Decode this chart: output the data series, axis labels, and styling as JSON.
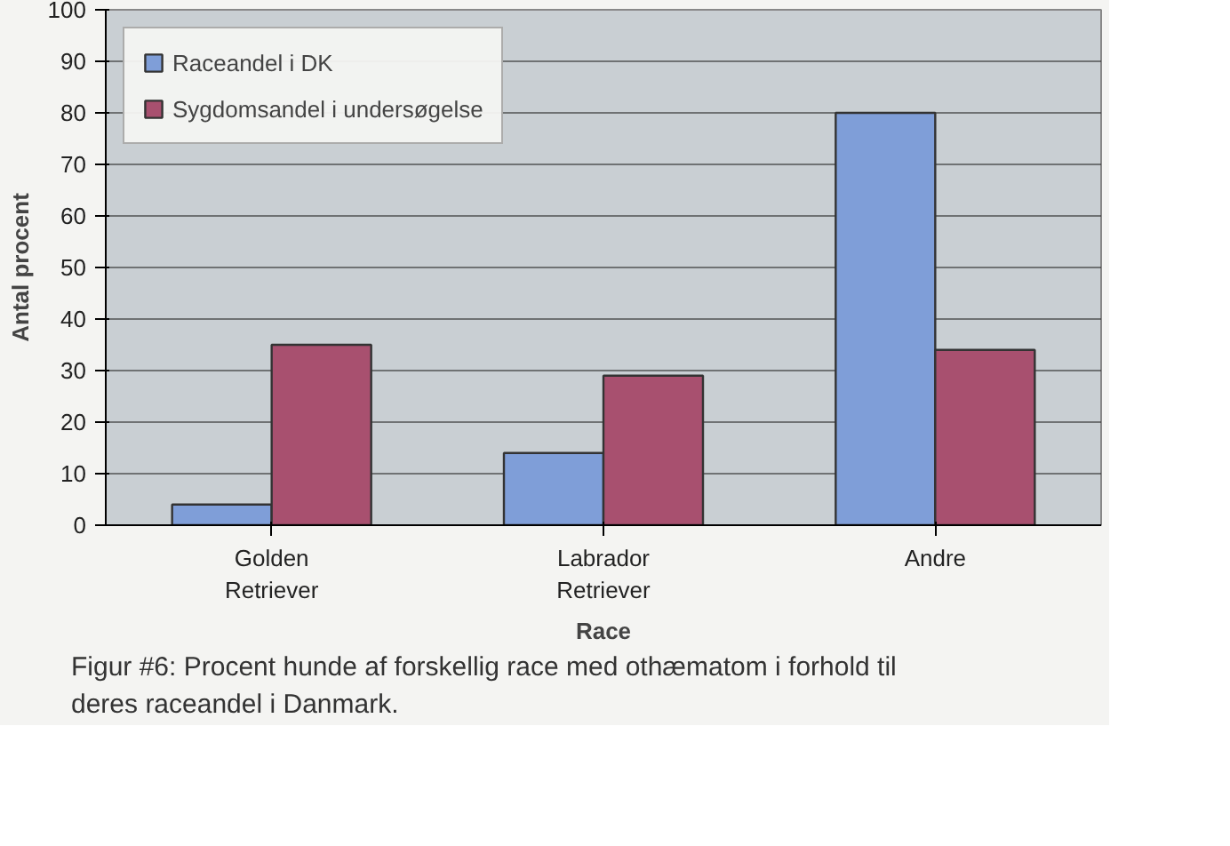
{
  "chart_data": {
    "type": "bar",
    "categories": [
      "Golden Retriever",
      "Labrador Retriever",
      "Andre"
    ],
    "series": [
      {
        "name": "Raceandel i DK",
        "color": "#7f9ed8",
        "values": [
          4,
          14,
          80
        ]
      },
      {
        "name": "Sygdomsandel i undersøgelse",
        "color": "#a8506f",
        "values": [
          35,
          29,
          34
        ]
      }
    ],
    "ylabel": "Antal procent",
    "xlabel": "Race",
    "ylim": [
      0,
      100
    ],
    "yticks": [
      0,
      10,
      20,
      30,
      40,
      50,
      60,
      70,
      80,
      90,
      100
    ],
    "grid": "y",
    "legend": "top left",
    "annotations": [
      "Figur #6: Procent hunde af forskellig race med othæmatom i forhold til deres raceandel i Danmark."
    ]
  }
}
